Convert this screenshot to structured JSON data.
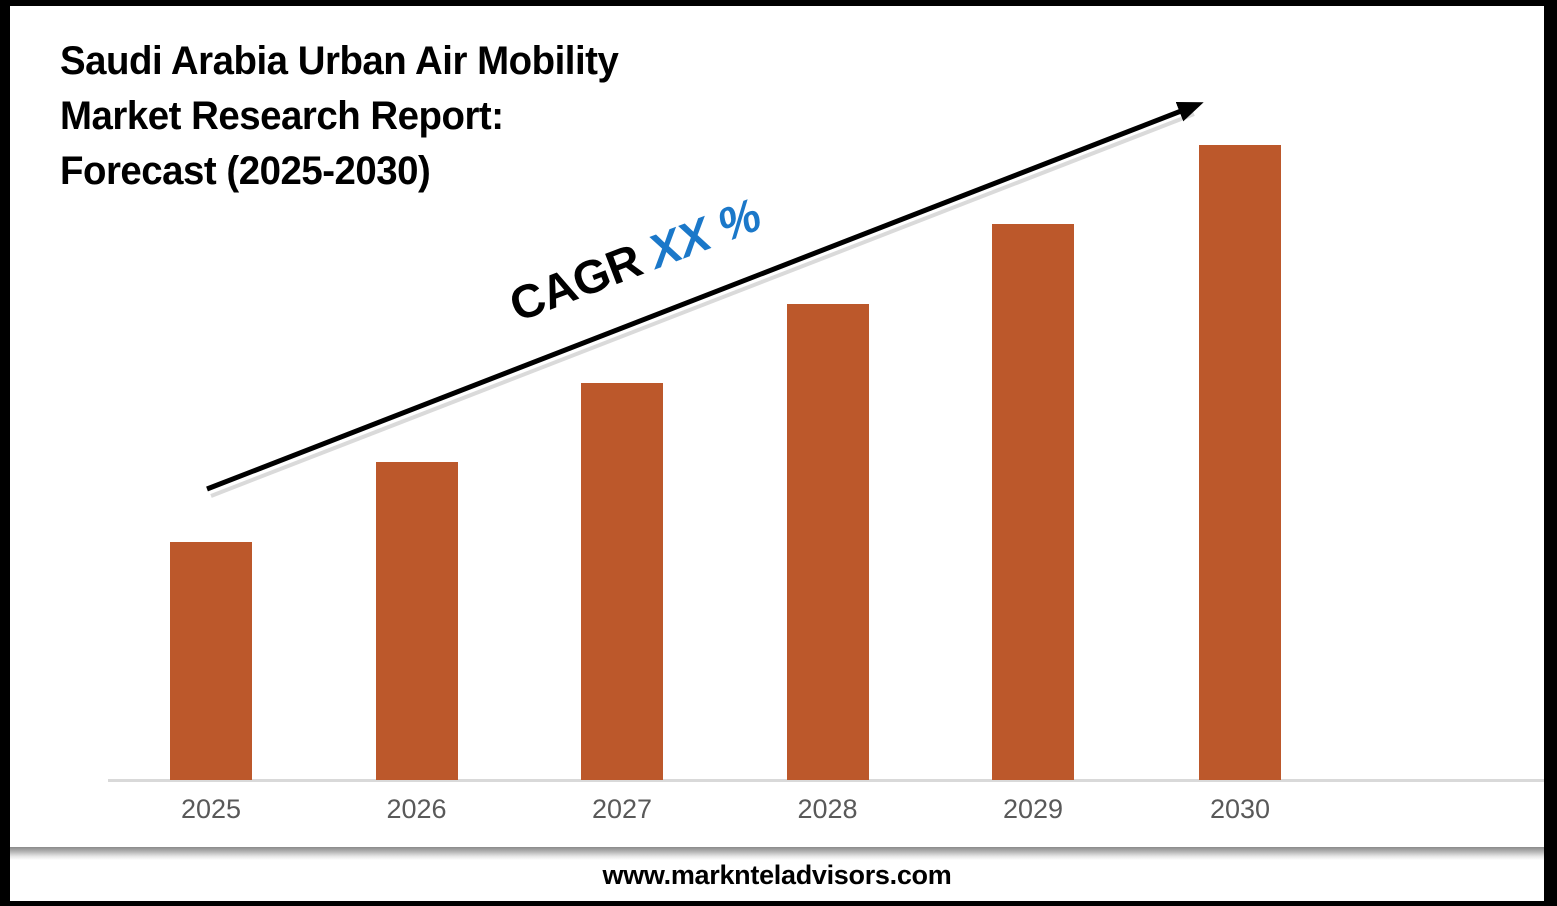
{
  "frame": {
    "border_color": "#000000"
  },
  "header": {
    "title_line1": "Saudi Arabia Urban Air Mobility",
    "title_line2": "Market Research Report:",
    "title_line3": "Forecast (2025-2030)"
  },
  "annotation": {
    "cagr_prefix": "CAGR",
    "cagr_value": "XX %",
    "cagr_value_color": "#1B78C9",
    "arrow_color": "#000000"
  },
  "chart_data": {
    "type": "bar",
    "title": "Saudi Arabia Urban Air Mobility Market Research Report: Forecast (2025-2030)",
    "categories": [
      "2025",
      "2026",
      "2027",
      "2028",
      "2029",
      "2030"
    ],
    "values": [
      3,
      4,
      5,
      6,
      7,
      8
    ],
    "values_note": "relative bar heights; no value axis or data labels shown",
    "xlabel": "",
    "ylabel": "",
    "bar_color": "#BC582B",
    "axis_line_color": "#D9D9D9",
    "tick_label_color": "#595959",
    "annotation_text": "CAGR XX %",
    "trend_arrow": "straight black arrow rising from above first bar to above last bar",
    "legend": "none",
    "gridlines": false
  },
  "footer": {
    "website": "www.marknteladvisors.com"
  }
}
